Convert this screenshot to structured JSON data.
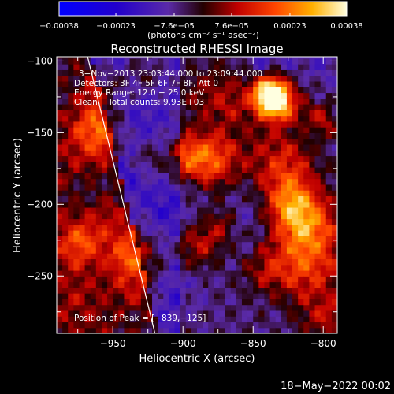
{
  "chart_data": {
    "type": "heatmap",
    "title": "Reconstructed RHESSI Image",
    "xlabel": "Heliocentric X (arcsec)",
    "ylabel": "Heliocentric Y (arcsec)",
    "xlim": [
      -990,
      -790
    ],
    "ylim": [
      -290,
      -97
    ],
    "x_ticks": [
      -950,
      -900,
      -850,
      -800
    ],
    "x_tick_labels": [
      "−950",
      "−900",
      "−850",
      "−800"
    ],
    "y_ticks": [
      -100,
      -150,
      -200,
      -250
    ],
    "y_tick_labels": [
      "−100",
      "−150",
      "−200",
      "−250"
    ],
    "colorbar": {
      "min": -0.00038,
      "max": 0.00038,
      "ticks": [
        -0.00038,
        -0.00023,
        -7.6e-05,
        7.6e-05,
        0.00023,
        0.00038
      ],
      "tick_labels": [
        "−0.00038",
        "−0.00023",
        "−7.6e−05",
        "7.6e−05",
        "0.00023",
        "0.00038"
      ],
      "unit_label": "(photons cm⁻² s⁻¹ asec⁻²)"
    },
    "annotations": {
      "time_range": "3−Nov−2013 23:03:44.000 to 23:09:44.000",
      "detectors": "Detectors: 3F 4F 5F 6F 7F 8F, Att 0",
      "energy_range": "Energy Range: 12.0 − 25.0 keV",
      "clean_info": "Clean    Total counts: 9.93E+03",
      "peak_position": "Position of Peak = [−839,−125]"
    },
    "peak": {
      "x": -839,
      "y": -125
    },
    "limb_line": [
      [
        -968,
        -97
      ],
      [
        -920,
        -290
      ]
    ],
    "grid": false
  },
  "footer": {
    "date": "18−May−2022 00:02"
  },
  "colors": {
    "background": "#000000",
    "foreground": "#ffffff",
    "colormap": [
      "#0000ff",
      "#3300bb",
      "#7733bb",
      "#ff0000",
      "#ff8800",
      "#ffffff"
    ]
  }
}
